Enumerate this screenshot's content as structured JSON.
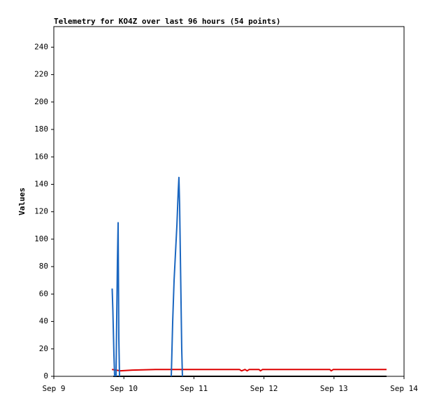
{
  "chart_data": {
    "type": "line",
    "title": "Telemetry for KO4Z over last 96 hours (54 points)",
    "y_label": "Values",
    "xlim": [
      0,
      5
    ],
    "ylim": [
      0,
      255
    ],
    "xticks": [
      {
        "value": 0,
        "label": "Sep 9"
      },
      {
        "value": 1,
        "label": "Sep 10"
      },
      {
        "value": 2,
        "label": "Sep 11"
      },
      {
        "value": 3,
        "label": "Sep 12"
      },
      {
        "value": 4,
        "label": "Sep 13"
      },
      {
        "value": 5,
        "label": "Sep 14"
      }
    ],
    "yticks": [
      0,
      20,
      40,
      60,
      80,
      100,
      120,
      140,
      160,
      180,
      200,
      220,
      240
    ],
    "series": [
      {
        "color": "#000000",
        "x": [
          0.85,
          4.75
        ],
        "values": [
          0,
          0
        ]
      },
      {
        "color": "#dd0000",
        "x": [
          0.83,
          0.95,
          1.12,
          1.45,
          2.65,
          2.68,
          2.73,
          2.76,
          2.79,
          2.93,
          2.95,
          2.98,
          3.94,
          3.96,
          3.99,
          4.75
        ],
        "values": [
          5,
          4,
          4.5,
          5,
          5,
          4,
          5,
          4,
          5,
          5,
          4,
          5,
          5,
          4,
          5,
          5
        ]
      },
      {
        "color": "#1a66c0",
        "x": [
          0.833,
          0.843,
          0.858,
          0.868,
          0.878,
          0.888,
          0.908,
          0.918,
          0.928,
          0.938,
          1.667,
          1.677,
          1.697,
          1.717,
          1.737,
          1.757,
          1.776,
          1.786,
          1.796,
          1.806,
          1.816,
          1.826,
          1.836
        ],
        "values": [
          64,
          48,
          16,
          0,
          null,
          0,
          84,
          112,
          28,
          0,
          null,
          0,
          40,
          70,
          90,
          110,
          135,
          145,
          125,
          90,
          55,
          20,
          0
        ]
      }
    ]
  }
}
